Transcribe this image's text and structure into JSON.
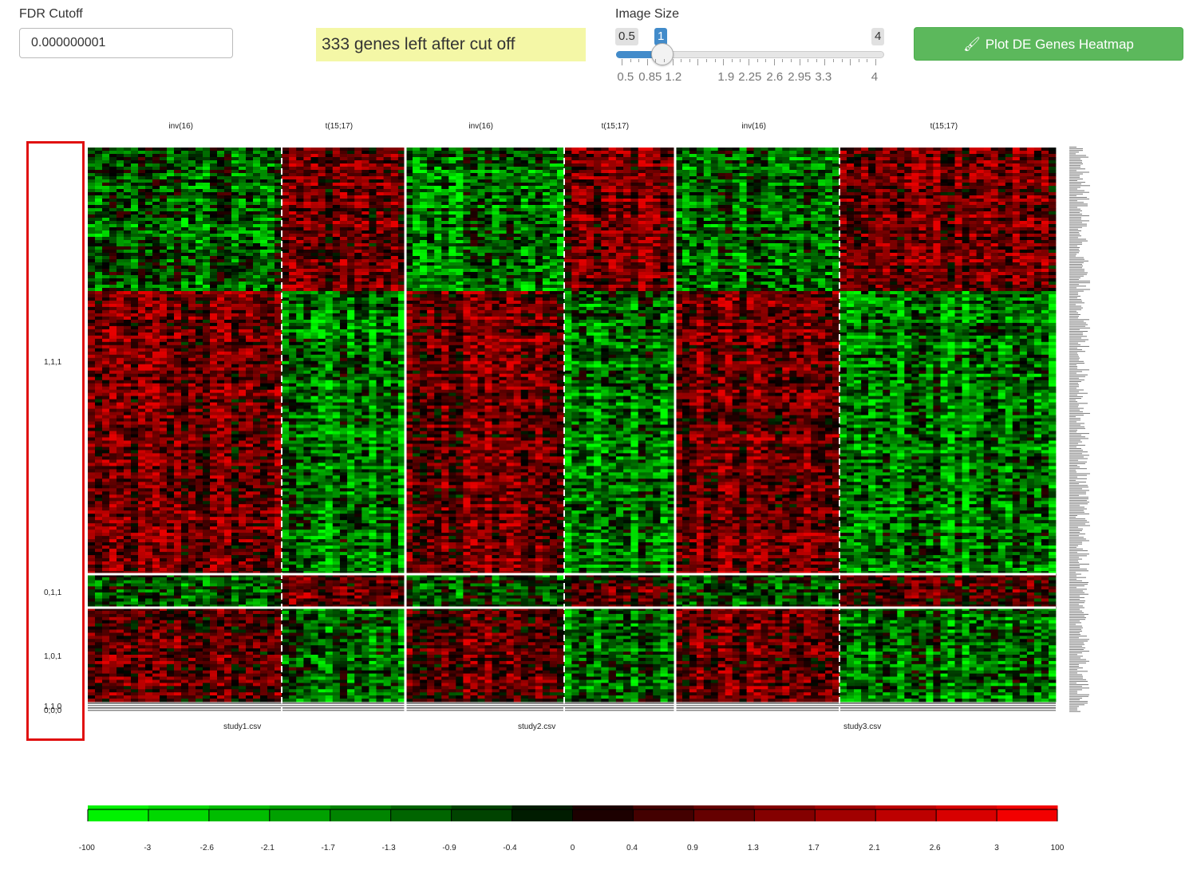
{
  "controls": {
    "fdr_label": "FDR Cutoff",
    "fdr_value": "0.000000001",
    "notice": "333 genes left after cut off",
    "image_size_label": "Image Size",
    "slider": {
      "min": 0.5,
      "max": 4,
      "value": 1,
      "min_label": "0.5",
      "max_label": "4",
      "value_label": "1",
      "tick_labels": [
        "0.5",
        "0.85",
        "1.2",
        "1.9",
        "2.25",
        "2.6",
        "2.95",
        "3.3",
        "4"
      ]
    },
    "plot_button": "Plot DE Genes Heatmap",
    "plot_button_icon": "paintbrush-icon"
  },
  "heatmap": {
    "column_groups": [
      {
        "label": "inv(16)"
      },
      {
        "label": "t(15;17)"
      },
      {
        "label": "inv(16)"
      },
      {
        "label": "t(15;17)"
      },
      {
        "label": "inv(16)"
      },
      {
        "label": "t(15;17)"
      }
    ],
    "studies": [
      "study1.csv",
      "study2.csv",
      "study3.csv"
    ],
    "row_groups": [
      "1,1,1",
      "0,1,1",
      "1,0,1",
      "1,1,0",
      "0,0,0"
    ],
    "colors": {
      "low": "#00ff00",
      "mid": "#000000",
      "high": "#ff0000",
      "highlight": "#e01010"
    }
  },
  "color_key": {
    "labels": [
      "-100",
      "-3",
      "-2.6",
      "-2.1",
      "-1.7",
      "-1.3",
      "-0.9",
      "-0.4",
      "0",
      "0.4",
      "0.9",
      "1.3",
      "1.7",
      "2.1",
      "2.6",
      "3",
      "100"
    ]
  }
}
